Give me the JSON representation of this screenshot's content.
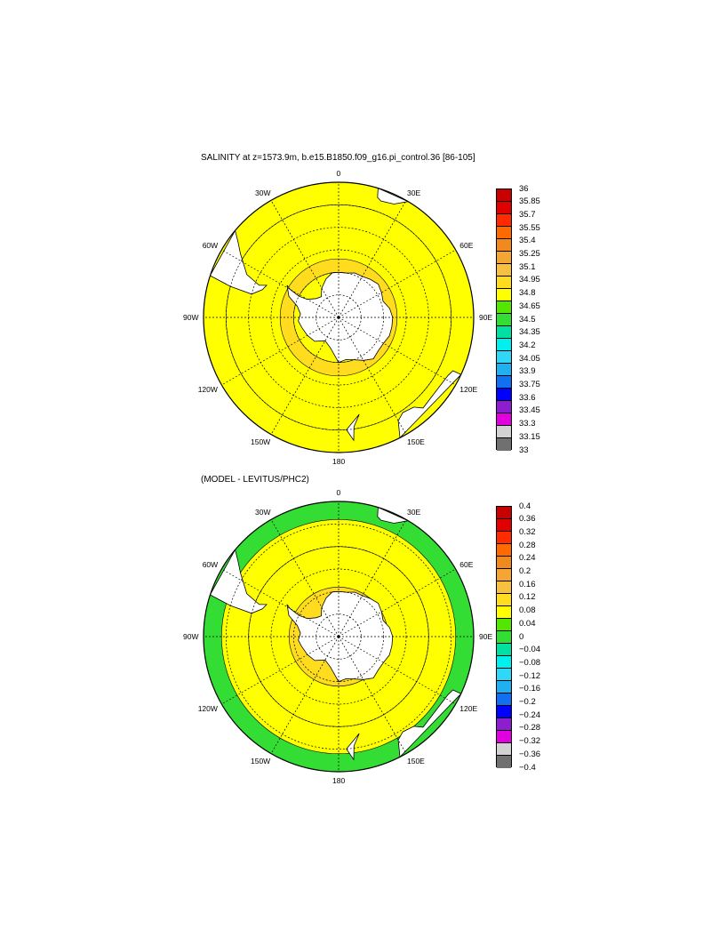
{
  "panels": [
    {
      "id": "top",
      "title": "SALINITY at z=1573.9m, b.e15.B1850.f09_g16.pi_control.36 [86-105]",
      "lon_labels": [
        "0",
        "30E",
        "60E",
        "90E",
        "120E",
        "150E",
        "180",
        "150W",
        "120W",
        "90W",
        "60W",
        "30W"
      ],
      "colorbar": {
        "labels": [
          "36",
          "35.85",
          "35.7",
          "35.55",
          "35.4",
          "35.25",
          "35.1",
          "34.95",
          "34.8",
          "34.65",
          "34.5",
          "34.35",
          "34.2",
          "34.05",
          "33.9",
          "33.75",
          "33.6",
          "33.45",
          "33.3",
          "33.15",
          "33"
        ],
        "colors": [
          "#c80000",
          "#e00000",
          "#ff2a00",
          "#ff6a00",
          "#f08a1e",
          "#f5a534",
          "#f8c040",
          "#ffdc1e",
          "#ffff00",
          "#52e600",
          "#33dd33",
          "#00e0a0",
          "#00f0f0",
          "#30d8f8",
          "#20b0f0",
          "#1070f0",
          "#0000ff",
          "#8c1ed0",
          "#e000e0",
          "#d2d2d2",
          "#707070"
        ]
      },
      "ocean_zones": [
        {
          "min_lat": -90,
          "max_lat": -70,
          "value": 34.8
        },
        {
          "min_lat": -70,
          "max_lat": -64,
          "value": 34.9
        },
        {
          "min_lat": -64,
          "max_lat": -40,
          "value": 34.75
        },
        {
          "min_lat": -40,
          "max_lat": -30,
          "value": 34.7
        }
      ]
    },
    {
      "id": "bottom",
      "title": "(MODEL - LEVITUS/PHC2)",
      "lon_labels": [
        "0",
        "30E",
        "60E",
        "90E",
        "120E",
        "150E",
        "180",
        "150W",
        "120W",
        "90W",
        "60W",
        "30W"
      ],
      "colorbar": {
        "labels": [
          "0.4",
          "0.36",
          "0.32",
          "0.28",
          "0.24",
          "0.2",
          "0.16",
          "0.12",
          "0.08",
          "0.04",
          "0",
          "−0.04",
          "−0.08",
          "−0.12",
          "−0.16",
          "−0.2",
          "−0.24",
          "−0.28",
          "−0.32",
          "−0.36",
          "−0.4"
        ],
        "colors": [
          "#c80000",
          "#e00000",
          "#ff2a00",
          "#ff6a00",
          "#f08a1e",
          "#f5a534",
          "#f8c040",
          "#ffdc1e",
          "#ffff00",
          "#52e600",
          "#33dd33",
          "#00e0a0",
          "#00f0f0",
          "#30d8f8",
          "#20b0f0",
          "#1070f0",
          "#0000ff",
          "#8c1ed0",
          "#e000e0",
          "#d2d2d2",
          "#707070"
        ]
      },
      "ocean_zones": [
        {
          "min_lat": -90,
          "max_lat": -68,
          "value": 0.09
        },
        {
          "min_lat": -68,
          "max_lat": -50,
          "value": 0.06
        },
        {
          "min_lat": -50,
          "max_lat": -38,
          "value": 0.05
        },
        {
          "min_lat": -38,
          "max_lat": -30,
          "value": -0.02
        }
      ]
    }
  ]
}
